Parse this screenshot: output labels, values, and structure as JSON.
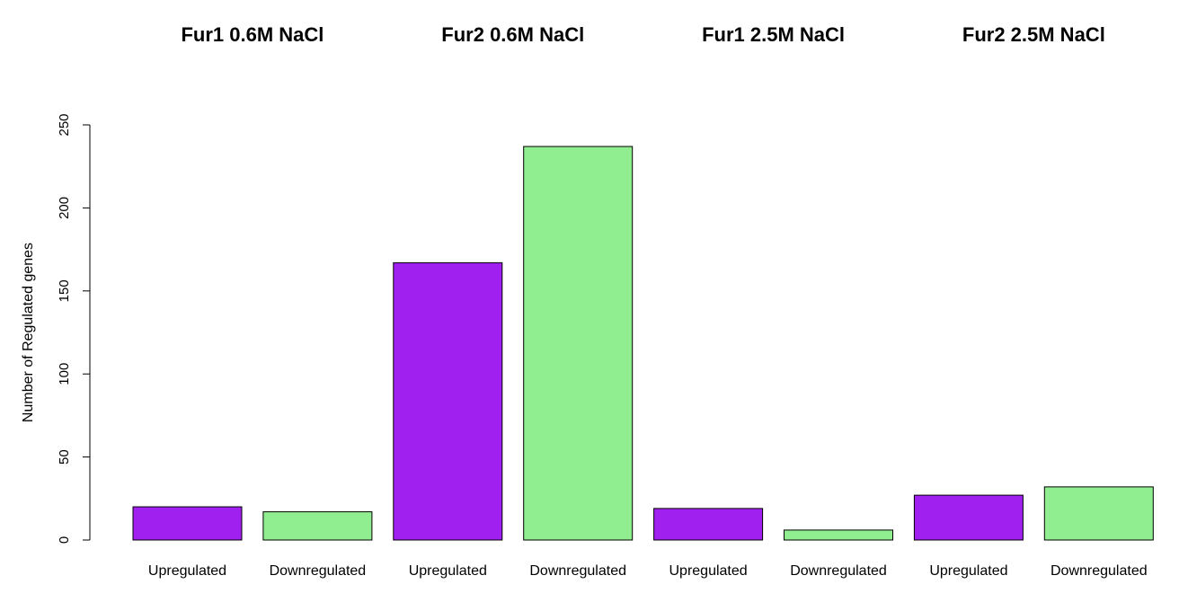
{
  "chart_data": {
    "type": "bar",
    "title": "",
    "xlabel": "",
    "ylabel": "Number of Regulated genes",
    "ylim": [
      0,
      250
    ],
    "yticks": [
      0,
      50,
      100,
      150,
      200,
      250
    ],
    "grid": false,
    "legend": "none",
    "groups": [
      {
        "title": "Fur1 0.6M NaCl",
        "categories": [
          "Upregulated",
          "Downregulated"
        ],
        "values": [
          20,
          17
        ]
      },
      {
        "title": "Fur2 0.6M NaCl",
        "categories": [
          "Upregulated",
          "Downregulated"
        ],
        "values": [
          167,
          237
        ]
      },
      {
        "title": "Fur1 2.5M NaCl",
        "categories": [
          "Upregulated",
          "Downregulated"
        ],
        "values": [
          19,
          6
        ]
      },
      {
        "title": "Fur2 2.5M NaCl",
        "categories": [
          "Upregulated",
          "Downregulated"
        ],
        "values": [
          27,
          32
        ]
      }
    ],
    "colors": {
      "Upregulated": "#A020F0",
      "Downregulated": "#90EE90"
    }
  }
}
